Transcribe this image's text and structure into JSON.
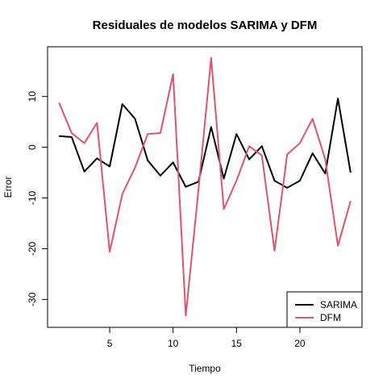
{
  "chart_data": {
    "type": "line",
    "title": "Residuales de modelos SARIMA y DFM",
    "xlabel": "Tiempo",
    "ylabel": "Error",
    "x": [
      1,
      2,
      3,
      4,
      5,
      6,
      7,
      8,
      9,
      10,
      11,
      12,
      13,
      14,
      15,
      16,
      17,
      18,
      19,
      20,
      21,
      22,
      23,
      24
    ],
    "xlim": [
      0.1,
      24.9
    ],
    "ylim": [
      -35.5,
      19.8
    ],
    "x_ticks": [
      5,
      10,
      15,
      20
    ],
    "y_ticks": [
      -30,
      -20,
      -10,
      0,
      10
    ],
    "grid": false,
    "legend_position": "bottom-right",
    "series": [
      {
        "name": "SARIMA",
        "color": "#000000",
        "values": [
          2.2,
          2.0,
          -4.8,
          -2.2,
          -3.8,
          8.5,
          5.6,
          -2.6,
          -5.6,
          -3.0,
          -7.8,
          -6.8,
          4.0,
          -6.2,
          2.6,
          -2.4,
          0.2,
          -6.6,
          -8.0,
          -6.6,
          -1.2,
          -5.2,
          9.6,
          -5.0
        ]
      },
      {
        "name": "DFM",
        "color": "#DF536B",
        "values": [
          8.8,
          2.8,
          0.8,
          4.8,
          -20.6,
          -9.2,
          -4.0,
          2.6,
          2.8,
          14.4,
          -33.2,
          -8.4,
          17.6,
          -12.2,
          -6.6,
          0.2,
          -1.6,
          -20.4,
          -1.4,
          0.8,
          5.6,
          -2.4,
          -19.4,
          -10.6
        ]
      }
    ]
  }
}
